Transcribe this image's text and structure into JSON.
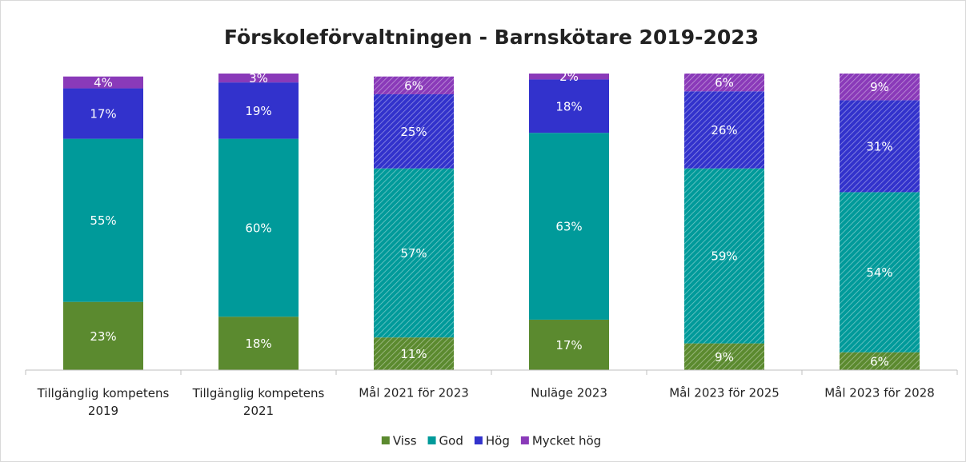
{
  "chart_data": {
    "type": "stacked_bar",
    "title": "Förskoleförvaltningen - Barnskötare 2019-2023",
    "categories": [
      "Tillgänglig kompetens 2019",
      "Tillgänglig kompetens 2021",
      "Mål 2021 för 2023",
      "Nuläge 2023",
      "Mål 2023 för 2025",
      "Mål 2023 för 2028"
    ],
    "hatched": [
      false,
      false,
      true,
      false,
      true,
      true
    ],
    "ylim": [
      0,
      100
    ],
    "legend": "bottom",
    "series": [
      {
        "name": "Viss",
        "color": "#5b8a2f",
        "values": [
          23,
          18,
          11,
          17,
          9,
          6
        ],
        "value_labels": [
          "23%",
          "18%",
          "11%",
          "17%",
          "9%",
          "6%"
        ]
      },
      {
        "name": "God",
        "color": "#009a9a",
        "values": [
          55,
          60,
          57,
          63,
          59,
          54
        ],
        "value_labels": [
          "55%",
          "60%",
          "57%",
          "63%",
          "59%",
          "54%"
        ]
      },
      {
        "name": "Hög",
        "color": "#3232cc",
        "values": [
          17,
          19,
          25,
          18,
          26,
          31
        ],
        "value_labels": [
          "17%",
          "19%",
          "25%",
          "18%",
          "26%",
          "31%"
        ]
      },
      {
        "name": "Mycket hög",
        "color": "#8a3ab9",
        "values": [
          4,
          3,
          6,
          2,
          6,
          9
        ],
        "value_labels": [
          "4%",
          "3%",
          "6%",
          "2%",
          "6%",
          "9%"
        ]
      }
    ]
  }
}
